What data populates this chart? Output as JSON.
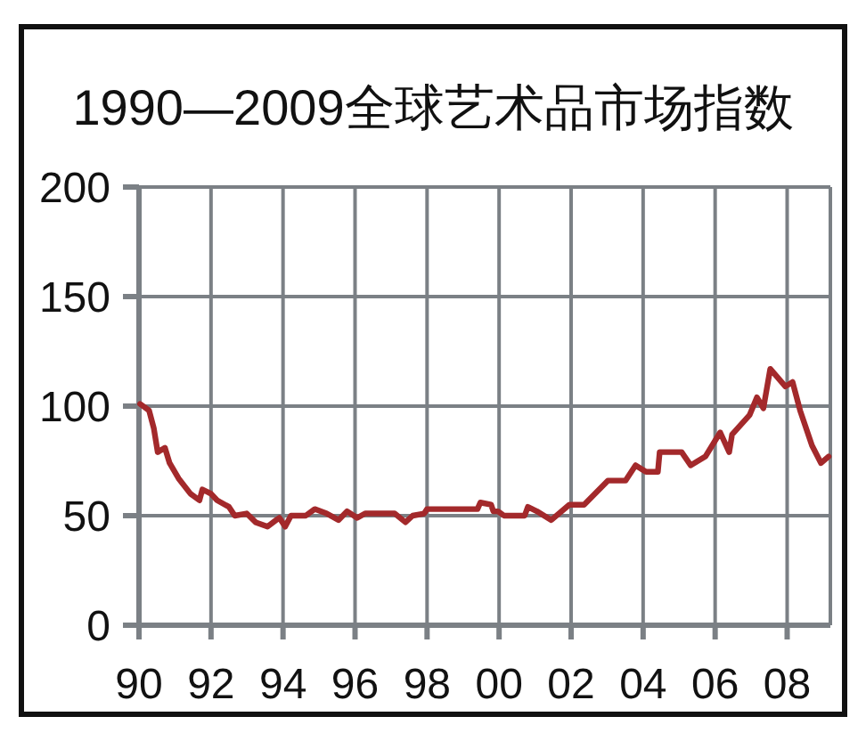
{
  "chart_data": {
    "type": "line",
    "title": "1990—2009全球艺术品市场指数",
    "x": [
      1990.03,
      1990.28,
      1990.41,
      1990.52,
      1990.72,
      1990.85,
      1991.1,
      1991.43,
      1991.68,
      1991.76,
      1992.0,
      1992.17,
      1992.5,
      1992.66,
      1992.99,
      1993.24,
      1993.57,
      1993.81,
      1993.9,
      1994.06,
      1994.22,
      1994.63,
      1994.88,
      1995.21,
      1995.54,
      1995.78,
      1996.06,
      1996.28,
      1997.1,
      1997.4,
      1997.6,
      1997.92,
      1998.0,
      1999.4,
      1999.48,
      1999.78,
      1999.84,
      1999.97,
      2000.14,
      2000.71,
      2000.8,
      2001.05,
      2001.45,
      2001.95,
      2002.36,
      2003.02,
      2003.51,
      2003.79,
      2004.08,
      2004.41,
      2004.46,
      2005.07,
      2005.32,
      2005.73,
      2006.14,
      2006.39,
      2006.47,
      2006.96,
      2007.16,
      2007.34,
      2007.53,
      2007.95,
      2008.15,
      2008.36,
      2008.69,
      2008.94,
      2009.15
    ],
    "values": [
      101,
      98,
      90,
      79,
      81,
      74,
      67,
      60,
      57,
      62,
      60,
      57,
      54,
      50,
      51,
      47,
      45,
      48,
      49,
      45,
      50,
      50,
      53,
      51,
      48,
      52,
      49,
      51,
      51,
      47,
      50,
      51,
      53,
      53,
      56,
      55,
      52,
      52,
      50,
      50,
      54,
      52,
      48,
      55,
      55,
      66,
      66,
      73,
      70,
      70,
      79,
      79,
      73,
      77,
      88,
      79,
      87,
      96,
      104,
      99,
      117,
      109,
      111,
      98,
      82,
      74,
      77
    ],
    "color": "#a3292b",
    "line_style": "solid",
    "xlim": [
      1990,
      2009.2
    ],
    "xticks": [
      {
        "value": 1990,
        "label": "90"
      },
      {
        "value": 1992,
        "label": "92"
      },
      {
        "value": 1994,
        "label": "94"
      },
      {
        "value": 1996,
        "label": "96"
      },
      {
        "value": 1998,
        "label": "98"
      },
      {
        "value": 2000,
        "label": "00"
      },
      {
        "value": 2002,
        "label": "02"
      },
      {
        "value": 2004,
        "label": "04"
      },
      {
        "value": 2006,
        "label": "06"
      },
      {
        "value": 2008,
        "label": "08"
      }
    ],
    "ylim": [
      0,
      200
    ],
    "yticks": [
      0,
      50,
      100,
      150,
      200
    ],
    "grid": true
  }
}
